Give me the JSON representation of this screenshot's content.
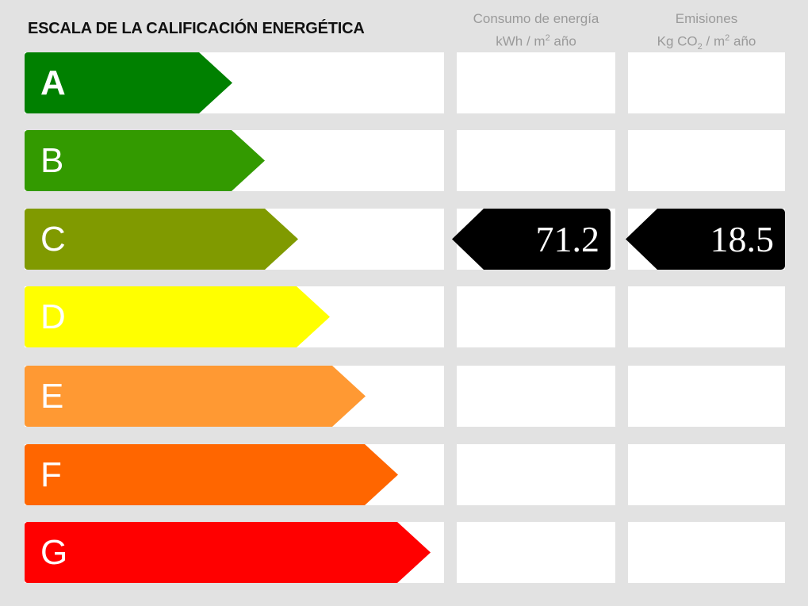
{
  "title": "ESCALA DE LA CALIFICACIÓN ENERGÉTICA",
  "columns": {
    "energy": {
      "line1": "Consumo de energía",
      "unit_prefix": "kWh / m",
      "unit_sup": "2",
      "unit_suffix": " año"
    },
    "emissions": {
      "line1": "Emisiones",
      "unit_prefix": "Kg CO",
      "unit_sub": "2",
      "unit_mid": " / m",
      "unit_sup": "2",
      "unit_suffix": " año"
    }
  },
  "ratings": [
    {
      "letter": "A",
      "color": "#008000"
    },
    {
      "letter": "B",
      "color": "#339a00"
    },
    {
      "letter": "C",
      "color": "#809a00"
    },
    {
      "letter": "D",
      "color": "#ffff00"
    },
    {
      "letter": "E",
      "color": "#ff9933"
    },
    {
      "letter": "F",
      "color": "#ff6600"
    },
    {
      "letter": "G",
      "color": "#ff0000"
    }
  ],
  "result": {
    "rating": "C",
    "energy_value": "71.2",
    "emissions_value": "18.5"
  }
}
